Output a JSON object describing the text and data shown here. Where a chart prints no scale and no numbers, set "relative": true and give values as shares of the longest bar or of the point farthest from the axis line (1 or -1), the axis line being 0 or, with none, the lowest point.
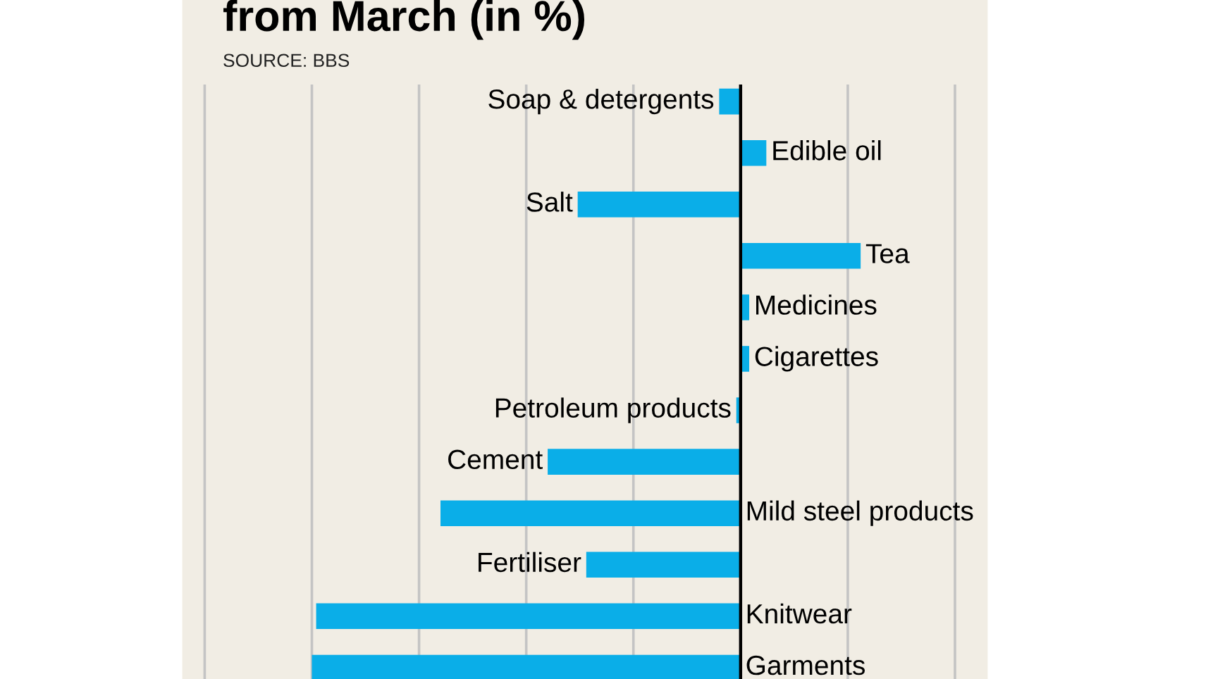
{
  "chart_data": {
    "type": "bar",
    "orientation": "horizontal",
    "relative": true,
    "title": "from March (in %)",
    "annotations": [
      "SOURCE: BBS"
    ],
    "categories": [
      "Soap & detergents",
      "Edible oil",
      "Salt",
      "Tea",
      "Medicines",
      "Cigarettes",
      "Petroleum products",
      "Cement",
      "Mild steel products",
      "Fertiliser",
      "Knitwear",
      "Garments"
    ],
    "values": [
      -0.05,
      0.06,
      -0.38,
      0.28,
      0.02,
      0.02,
      -0.01,
      -0.45,
      -0.7,
      -0.36,
      -0.99,
      -1
    ],
    "color": "#0aaee8",
    "grid": "x"
  }
}
